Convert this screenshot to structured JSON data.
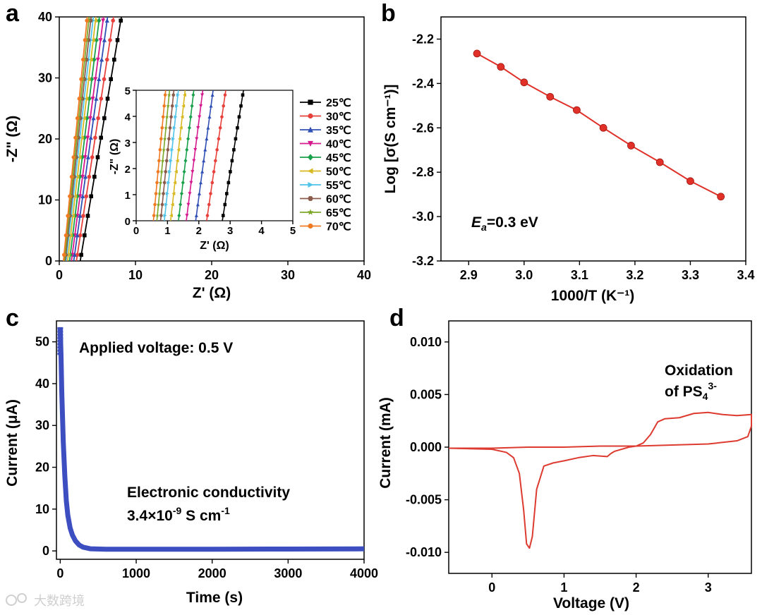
{
  "watermark": "大数跨境",
  "chart_data": [
    {
      "panel": "a",
      "type": "line",
      "xlabel": "Z' (Ω)",
      "ylabel": "-Z\" (Ω)",
      "xlim": [
        0,
        40
      ],
      "ylim": [
        0,
        40
      ],
      "xticks": [
        "0",
        "10",
        "20",
        "30",
        "40"
      ],
      "yticks": [
        "0",
        "10",
        "20",
        "30",
        "40"
      ],
      "legend": {
        "placement": "right-of-inset"
      },
      "series": [
        {
          "name": "25℃",
          "color": "#000000",
          "marker": "square",
          "x0": 2.75,
          "slope": 7.4
        },
        {
          "name": "30℃",
          "color": "#e8413c",
          "marker": "circle",
          "x0": 2.25,
          "slope": 8.2
        },
        {
          "name": "35℃",
          "color": "#2f4fb5",
          "marker": "triangle-up",
          "x0": 1.9,
          "slope": 9.0
        },
        {
          "name": "40℃",
          "color": "#d6188f",
          "marker": "triangle-down",
          "x0": 1.6,
          "slope": 9.5
        },
        {
          "name": "45℃",
          "color": "#18a04a",
          "marker": "diamond",
          "x0": 1.35,
          "slope": 10.2
        },
        {
          "name": "50℃",
          "color": "#d8b820",
          "marker": "triangle-left",
          "x0": 1.1,
          "slope": 10.8
        },
        {
          "name": "55℃",
          "color": "#4fc3e8",
          "marker": "triangle-right",
          "x0": 0.9,
          "slope": 11.2
        },
        {
          "name": "60℃",
          "color": "#8a5a4a",
          "marker": "hexagon",
          "x0": 0.78,
          "slope": 11.8
        },
        {
          "name": "65℃",
          "color": "#7da82a",
          "marker": "star",
          "x0": 0.66,
          "slope": 12.3
        },
        {
          "name": "70℃",
          "color": "#f07a22",
          "marker": "circle",
          "x0": 0.55,
          "slope": 12.8
        }
      ],
      "inset": {
        "xlabel": "Z' (Ω)",
        "ylabel": "-Z\" (Ω)",
        "xlim": [
          0,
          5
        ],
        "ylim": [
          0,
          5
        ],
        "xticks": [
          "0",
          "1",
          "2",
          "3",
          "4",
          "5"
        ],
        "yticks": [
          "0",
          "1",
          "2",
          "3",
          "4",
          "5"
        ]
      }
    },
    {
      "panel": "b",
      "type": "scatter",
      "xlabel": "1000/T (K⁻¹)",
      "ylabel": "Log [σ(S cm⁻¹)]",
      "xlim": [
        2.85,
        3.4
      ],
      "ylim": [
        -3.2,
        -2.1
      ],
      "xticks": [
        "2.9",
        "3.0",
        "3.1",
        "3.2",
        "3.3",
        "3.4"
      ],
      "yticks": [
        "-2.2",
        "-2.4",
        "-2.6",
        "-2.8",
        "-3.0",
        "-3.2"
      ],
      "color": "#e03028",
      "x": [
        2.915,
        2.958,
        3.0,
        3.047,
        3.095,
        3.143,
        3.193,
        3.245,
        3.3,
        3.355
      ],
      "y": [
        -2.265,
        -2.325,
        -2.395,
        -2.46,
        -2.52,
        -2.6,
        -2.68,
        -2.755,
        -2.84,
        -2.91
      ],
      "annotation": {
        "italic": "E",
        "sub": "a",
        "rest": "=0.3 eV"
      }
    },
    {
      "panel": "c",
      "type": "line",
      "xlabel": "Time (s)",
      "ylabel": "Current (μA)",
      "xlim": [
        -50,
        4000
      ],
      "ylim": [
        -2,
        55
      ],
      "xticks": [
        "0",
        "1000",
        "2000",
        "3000",
        "4000"
      ],
      "yticks": [
        "0",
        "10",
        "20",
        "30",
        "40",
        "50"
      ],
      "color": "#3d4fc0",
      "x": [
        0,
        10,
        20,
        40,
        60,
        80,
        100,
        130,
        160,
        200,
        250,
        300,
        400,
        600,
        1000,
        1500,
        2000,
        3000,
        4000
      ],
      "y": [
        53,
        47,
        38,
        26,
        18,
        12,
        8.5,
        5.5,
        3.8,
        2.4,
        1.4,
        0.9,
        0.5,
        0.4,
        0.4,
        0.4,
        0.4,
        0.45,
        0.5
      ],
      "annotations": {
        "voltage": "Applied voltage: 0.5 V",
        "cond_line1": "Electronic conductivity",
        "cond_value": "3.4×10",
        "cond_exp": "-9",
        "cond_unit": " S cm",
        "cond_unit_exp": "-1"
      }
    },
    {
      "panel": "d",
      "type": "line",
      "xlabel": "Voltage (V)",
      "ylabel": "Current (mA)",
      "xlim": [
        -0.6,
        3.6
      ],
      "ylim": [
        -0.012,
        0.012
      ],
      "xticks": [
        "0",
        "1",
        "2",
        "3"
      ],
      "yticks": [
        "0.010",
        "0.005",
        "0.000",
        "-0.005",
        "-0.010"
      ],
      "color": "#dd3a30",
      "x": [
        -0.6,
        0.0,
        0.2,
        0.3,
        0.38,
        0.44,
        0.48,
        0.52,
        0.56,
        0.62,
        0.72,
        0.85,
        1.0,
        1.2,
        1.4,
        1.6,
        1.65,
        1.7,
        1.9,
        2.0,
        2.1,
        2.2,
        2.3,
        2.4,
        2.6,
        2.8,
        3.0,
        3.2,
        3.4,
        3.6,
        3.6,
        3.55,
        3.4,
        3.0,
        2.5,
        2.0,
        1.5,
        1.0,
        0.5,
        0.0,
        -0.6
      ],
      "y": [
        -0.0001,
        -0.0002,
        -0.0005,
        -0.001,
        -0.0025,
        -0.006,
        -0.0092,
        -0.0096,
        -0.0085,
        -0.004,
        -0.0018,
        -0.0015,
        -0.0013,
        -0.001,
        -0.0008,
        -0.0009,
        -0.0006,
        -0.0004,
        0.0,
        0.0001,
        0.0004,
        0.0012,
        0.0024,
        0.0027,
        0.0028,
        0.0032,
        0.0033,
        0.0031,
        0.003,
        0.0031,
        0.002,
        0.001,
        0.0006,
        0.0003,
        0.0002,
        0.0001,
        0.0001,
        0.0,
        0.0,
        -0.0001,
        -0.0001
      ],
      "annotation": {
        "line1": "Oxidation",
        "line2": "of PS",
        "sub": "4",
        "sup": "3-"
      }
    }
  ]
}
